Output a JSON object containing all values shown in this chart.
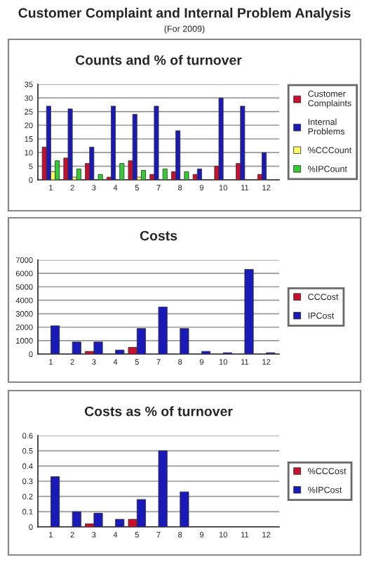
{
  "chart_data": [
    {
      "type": "other",
      "title": "Customer Complaint and Internal Problem Analysis",
      "subtitle": "(For 2009)"
    },
    {
      "type": "bar",
      "title": "Counts and % of turnover",
      "categories": [
        "1",
        "2",
        "3",
        "4",
        "5",
        "7",
        "8",
        "9",
        "10",
        "11",
        "12"
      ],
      "series": [
        {
          "name": "Customer Complaints",
          "color": "#c8102e",
          "values": [
            12,
            8,
            6,
            1,
            7,
            2,
            3,
            2,
            5,
            6,
            2
          ]
        },
        {
          "name": "Internal Problems",
          "color": "#1a1ab8",
          "values": [
            27,
            26,
            12,
            27,
            24,
            27,
            18,
            4,
            30,
            27,
            10
          ]
        },
        {
          "name": "%CCCount",
          "color": "#ffff66",
          "values": [
            3,
            1,
            null,
            null,
            1,
            null,
            null,
            null,
            null,
            null,
            null
          ]
        },
        {
          "name": "%IPCount",
          "color": "#33cc33",
          "values": [
            7,
            4,
            2,
            6,
            3.5,
            4,
            3,
            null,
            null,
            null,
            null
          ]
        }
      ],
      "ylim": [
        0,
        35
      ],
      "yticks": [
        0,
        5,
        10,
        15,
        20,
        25,
        30,
        35
      ],
      "grid": "y",
      "legend": "right"
    },
    {
      "type": "bar",
      "title": "Costs",
      "categories": [
        "1",
        "2",
        "3",
        "4",
        "5",
        "7",
        "8",
        "9",
        "10",
        "11",
        "12"
      ],
      "series": [
        {
          "name": "CCCost",
          "color": "#c8102e",
          "values": [
            null,
            null,
            200,
            null,
            500,
            null,
            null,
            null,
            null,
            null,
            null
          ]
        },
        {
          "name": "IPCost",
          "color": "#1a1ab8",
          "values": [
            2100,
            900,
            900,
            300,
            1900,
            3500,
            1900,
            200,
            100,
            6300,
            100
          ]
        }
      ],
      "ylim": [
        0,
        7000
      ],
      "yticks": [
        0,
        1000,
        2000,
        3000,
        4000,
        5000,
        6000,
        7000
      ],
      "grid": "y",
      "legend": "right"
    },
    {
      "type": "bar",
      "title": "Costs as % of turnover",
      "categories": [
        "1",
        "2",
        "3",
        "4",
        "5",
        "7",
        "8",
        "9",
        "10",
        "11",
        "12"
      ],
      "series": [
        {
          "name": "%CCCost",
          "color": "#c8102e",
          "values": [
            null,
            null,
            0.02,
            null,
            0.05,
            null,
            null,
            null,
            null,
            null,
            null
          ]
        },
        {
          "name": "%IPCost",
          "color": "#1a1ab8",
          "values": [
            0.33,
            0.1,
            0.09,
            0.05,
            0.18,
            0.5,
            0.23,
            null,
            null,
            null,
            null
          ]
        }
      ],
      "ylim": [
        0,
        0.6
      ],
      "yticks": [
        0,
        0.1,
        0.2,
        0.3,
        0.4,
        0.5,
        0.6
      ],
      "grid": "y",
      "legend": "right"
    }
  ]
}
